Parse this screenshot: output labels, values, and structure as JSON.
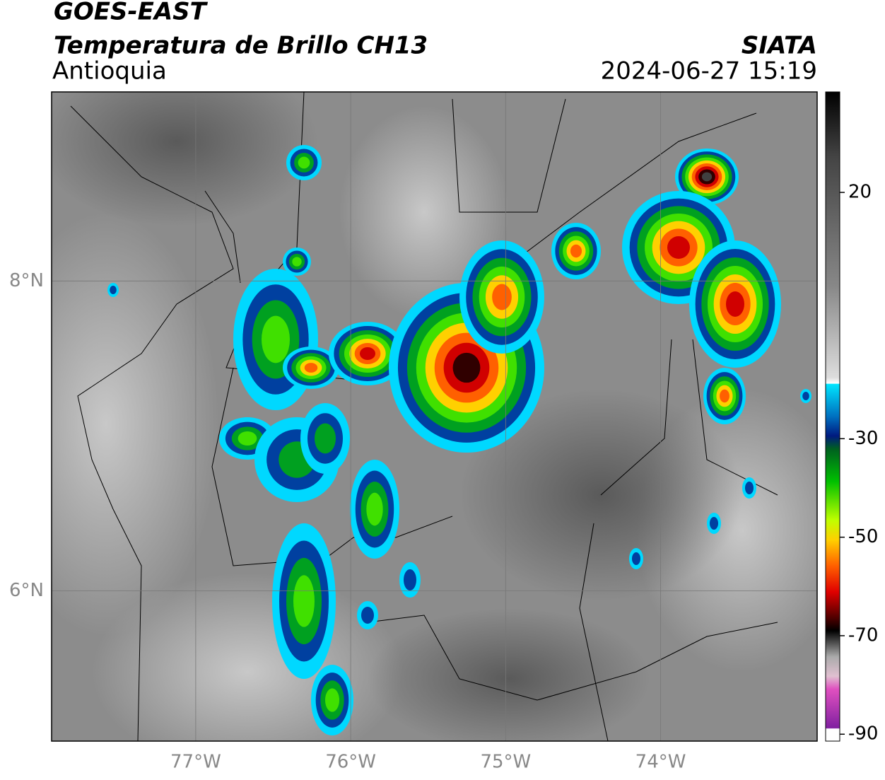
{
  "header": {
    "satellite": "GOES-EAST",
    "title": "Temperatura de Brillo CH13",
    "region": "Antioquia",
    "source": "SIATA",
    "datetime": "2024-06-27 15:19"
  },
  "map": {
    "xlim": [
      -77.93,
      -72.99
    ],
    "ylim": [
      5.03,
      9.22
    ],
    "xticks": [
      {
        "value": -77,
        "label": "77°W"
      },
      {
        "value": -76,
        "label": "76°W"
      },
      {
        "value": -75,
        "label": "75°W"
      },
      {
        "value": -74,
        "label": "74°W"
      }
    ],
    "yticks": [
      {
        "value": 6,
        "label": "6°N"
      },
      {
        "value": 8,
        "label": "8°N"
      }
    ],
    "grid": true
  },
  "colorbar": {
    "lim": [
      -91.4,
      40.4
    ],
    "ticks": [
      20,
      -30,
      -50,
      -70,
      -90
    ]
  }
}
